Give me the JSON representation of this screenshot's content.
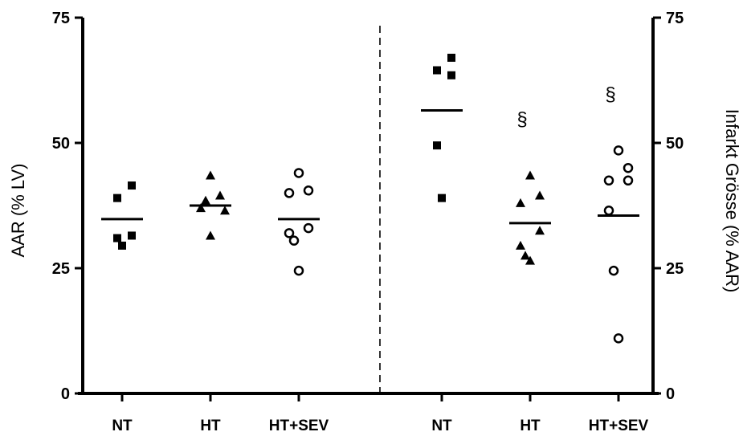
{
  "chart_data": {
    "type": "scatter",
    "left_panel": {
      "ylabel": "AAR (% LV)",
      "ylim": [
        0,
        75
      ],
      "yticks": [
        "0",
        "25",
        "50",
        "75"
      ],
      "groups": [
        {
          "category": "NT",
          "marker": "square",
          "points": [
            41.5,
            39.0,
            31.5,
            31.0,
            29.5
          ],
          "mean": 34.8
        },
        {
          "category": "HT",
          "marker": "triangle",
          "points": [
            43.5,
            39.5,
            38.5,
            37.0,
            36.5,
            31.5
          ],
          "mean": 37.5
        },
        {
          "category": "HT+SEV",
          "marker": "circle",
          "points": [
            44.0,
            40.5,
            40.0,
            33.0,
            32.0,
            30.5,
            24.5
          ],
          "mean": 34.8
        }
      ]
    },
    "right_panel": {
      "ylabel": "Infarkt Grösse (% AAR)",
      "ylim": [
        0,
        75
      ],
      "yticks": [
        "0",
        "25",
        "50",
        "75"
      ],
      "groups": [
        {
          "category": "NT",
          "marker": "square",
          "points": [
            67.0,
            64.5,
            63.5,
            49.5,
            39.0
          ],
          "mean": 56.5,
          "annotation": ""
        },
        {
          "category": "HT",
          "marker": "triangle",
          "points": [
            43.5,
            39.5,
            38.0,
            32.5,
            29.5,
            27.5,
            26.5
          ],
          "mean": 34.0,
          "annotation": "§"
        },
        {
          "category": "HT+SEV",
          "marker": "circle",
          "points": [
            48.5,
            45.0,
            42.5,
            42.5,
            36.5,
            24.5,
            11.0
          ],
          "mean": 35.5,
          "annotation": "§"
        }
      ]
    }
  }
}
